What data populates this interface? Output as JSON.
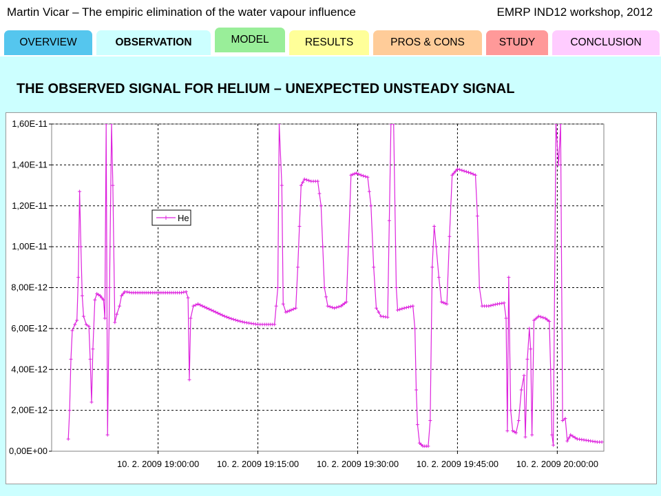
{
  "header": {
    "left": "Martin Vicar – The empiric elimination of the water vapour influence",
    "right": "EMRP IND12 workshop, 2012"
  },
  "tabs": [
    {
      "label": "OVERVIEW",
      "color": "#55c6ee",
      "active": false
    },
    {
      "label": "OBSERVATION",
      "color": "#ccffff",
      "active": true
    },
    {
      "label": "MODEL",
      "color": "#99ee99",
      "active": false
    },
    {
      "label": "RESULTS",
      "color": "#ffff99",
      "active": false
    },
    {
      "label": "PROS & CONS",
      "color": "#ffcc99",
      "active": false
    },
    {
      "label": "STUDY",
      "color": "#ff9999",
      "active": false
    },
    {
      "label": "CONCLUSION",
      "color": "#ffccff",
      "active": false
    }
  ],
  "slide": {
    "title": "THE OBSERVED SIGNAL FOR HELIUM – UNEXPECTED UNSTEADY SIGNAL"
  },
  "chart_data": {
    "type": "line",
    "series_color": "#dd22dd",
    "legend_position": "upper-left inside plot",
    "grid": true,
    "xlim_minutes": [
      -16,
      67
    ],
    "ylim": [
      0,
      1.6e-11
    ],
    "yticks": [
      "0,00E+00",
      "2,00E-12",
      "4,00E-12",
      "6,00E-12",
      "8,00E-12",
      "1,00E-11",
      "1,20E-11",
      "1,40E-11",
      "1,60E-11"
    ],
    "ytick_values": [
      0,
      2e-12,
      4e-12,
      6e-12,
      8e-12,
      1e-11,
      1.2e-11,
      1.4e-11,
      1.6e-11
    ],
    "xticks": [
      "10. 2. 2009 19:00:00",
      "10. 2. 2009 19:15:00",
      "10. 2. 2009 19:30:00",
      "10. 2. 2009 19:45:00",
      "10. 2. 2009 20:00:00"
    ],
    "xtick_minutes": [
      0,
      15,
      30,
      45,
      60
    ],
    "series": [
      {
        "name": "He",
        "points": [
          [
            -13.5,
            6e-13
          ],
          [
            -13.3,
            2e-12
          ],
          [
            -13.1,
            4.5e-12
          ],
          [
            -12.9,
            5.9e-12
          ],
          [
            -12.5,
            6.2e-12
          ],
          [
            -12.2,
            6.4e-12
          ],
          [
            -12,
            8.5e-12
          ],
          [
            -11.8,
            1.27e-11
          ],
          [
            -11.6,
            1e-11
          ],
          [
            -11.4,
            7.6e-12
          ],
          [
            -11.2,
            6.6e-12
          ],
          [
            -10.8,
            6.2e-12
          ],
          [
            -10.4,
            6.1e-12
          ],
          [
            -10.2,
            4.5e-12
          ],
          [
            -10,
            2.4e-12
          ],
          [
            -9.8,
            5e-12
          ],
          [
            -9.5,
            7.4e-12
          ],
          [
            -9.2,
            7.7e-12
          ],
          [
            -8.7,
            7.6e-12
          ],
          [
            -8.2,
            7.4e-12
          ],
          [
            -8,
            6.5e-12
          ],
          [
            -7.8,
            1.6e-11
          ],
          [
            -7.6,
            8e-13
          ],
          [
            -7.3,
            8e-12
          ],
          [
            -7,
            1.6e-11
          ],
          [
            -6.8,
            1.3e-11
          ],
          [
            -6.5,
            6.3e-12
          ],
          [
            -6.2,
            6.7e-12
          ],
          [
            -5.8,
            7.1e-12
          ],
          [
            -5.5,
            7.6e-12
          ],
          [
            -5,
            7.8e-12
          ],
          [
            -4,
            7.75e-12
          ],
          [
            -2,
            7.75e-12
          ],
          [
            0,
            7.75e-12
          ],
          [
            2,
            7.75e-12
          ],
          [
            3.5,
            7.75e-12
          ],
          [
            4.2,
            7.8e-12
          ],
          [
            4.5,
            7.5e-12
          ],
          [
            4.7,
            3.5e-12
          ],
          [
            4.9,
            6.5e-12
          ],
          [
            5.3,
            7.1e-12
          ],
          [
            6,
            7.2e-12
          ],
          [
            7,
            7.05e-12
          ],
          [
            8,
            6.9e-12
          ],
          [
            9,
            6.75e-12
          ],
          [
            10,
            6.6e-12
          ],
          [
            11,
            6.48e-12
          ],
          [
            12,
            6.38e-12
          ],
          [
            13,
            6.3e-12
          ],
          [
            14,
            6.25e-12
          ],
          [
            15,
            6.2e-12
          ],
          [
            16,
            6.2e-12
          ],
          [
            17.5,
            6.2e-12
          ],
          [
            18,
            8e-12
          ],
          [
            18.2,
            1.6e-11
          ],
          [
            18.6,
            1.3e-11
          ],
          [
            18.8,
            7.2e-12
          ],
          [
            19.2,
            6.8e-12
          ],
          [
            20,
            6.9e-12
          ],
          [
            20.7,
            7e-12
          ],
          [
            21,
            9e-12
          ],
          [
            21.5,
            1.3e-11
          ],
          [
            22,
            1.33e-11
          ],
          [
            23,
            1.32e-11
          ],
          [
            24,
            1.32e-11
          ],
          [
            24.5,
            1.2e-11
          ],
          [
            25,
            8e-12
          ],
          [
            25.5,
            7.1e-12
          ],
          [
            26.5,
            7e-12
          ],
          [
            27.5,
            7.1e-12
          ],
          [
            28.3,
            7.3e-12
          ],
          [
            28.6,
            1e-11
          ],
          [
            29,
            1.35e-11
          ],
          [
            29.8,
            1.36e-11
          ],
          [
            30.5,
            1.35e-11
          ],
          [
            31.5,
            1.34e-11
          ],
          [
            32,
            1.2e-11
          ],
          [
            32.4,
            9e-12
          ],
          [
            32.8,
            7e-12
          ],
          [
            33.5,
            6.6e-12
          ],
          [
            34.5,
            6.55e-12
          ],
          [
            35,
            1.6e-11
          ],
          [
            35.4,
            1.6e-11
          ],
          [
            35.8,
            8e-12
          ],
          [
            36,
            6.9e-12
          ],
          [
            37,
            7e-12
          ],
          [
            38.3,
            7.1e-12
          ],
          [
            38.6,
            6e-12
          ],
          [
            38.8,
            3e-12
          ],
          [
            39,
            1.3e-12
          ],
          [
            39.3,
            4e-13
          ],
          [
            39.8,
            2.5e-13
          ],
          [
            40.6,
            2.5e-13
          ],
          [
            40.9,
            1.5e-12
          ],
          [
            41.2,
            9e-12
          ],
          [
            41.5,
            1.1e-11
          ],
          [
            41.8,
            1e-11
          ],
          [
            42.2,
            8.5e-12
          ],
          [
            42.6,
            7.3e-12
          ],
          [
            43.4,
            7.2e-12
          ],
          [
            43.8,
            1.05e-11
          ],
          [
            44.2,
            1.35e-11
          ],
          [
            45,
            1.38e-11
          ],
          [
            46,
            1.37e-11
          ],
          [
            47,
            1.36e-11
          ],
          [
            47.7,
            1.35e-11
          ],
          [
            48,
            1.15e-11
          ],
          [
            48.3,
            8e-12
          ],
          [
            48.7,
            7.1e-12
          ],
          [
            49.7,
            7.1e-12
          ],
          [
            51,
            7.2e-12
          ],
          [
            52,
            7.25e-12
          ],
          [
            52.3,
            6.5e-12
          ],
          [
            52.5,
            1e-12
          ],
          [
            52.7,
            8.5e-12
          ],
          [
            53,
            2e-12
          ],
          [
            53.3,
            1e-12
          ],
          [
            53.8,
            9e-13
          ],
          [
            54.2,
            1.5e-12
          ],
          [
            54.6,
            3e-12
          ],
          [
            55,
            3.7e-12
          ],
          [
            55.2,
            7e-13
          ],
          [
            55.5,
            4.5e-12
          ],
          [
            55.8,
            6e-12
          ],
          [
            56,
            5e-12
          ],
          [
            56.2,
            8e-13
          ],
          [
            56.5,
            6.4e-12
          ],
          [
            57.2,
            6.6e-12
          ],
          [
            58.2,
            6.5e-12
          ],
          [
            58.8,
            6.35e-12
          ],
          [
            59,
            4e-12
          ],
          [
            59.2,
            8e-13
          ],
          [
            59.4,
            3e-13
          ],
          [
            59.8,
            1.6e-11
          ],
          [
            60.2,
            1.4e-11
          ],
          [
            60.5,
            1.6e-11
          ],
          [
            60.8,
            1.5e-12
          ],
          [
            61.2,
            1.6e-12
          ],
          [
            61.5,
            5e-13
          ],
          [
            62,
            8e-13
          ],
          [
            63,
            6e-13
          ],
          [
            64,
            5.5e-13
          ],
          [
            65,
            5e-13
          ],
          [
            66,
            4.5e-13
          ],
          [
            66.7,
            4.5e-13
          ]
        ]
      }
    ]
  }
}
